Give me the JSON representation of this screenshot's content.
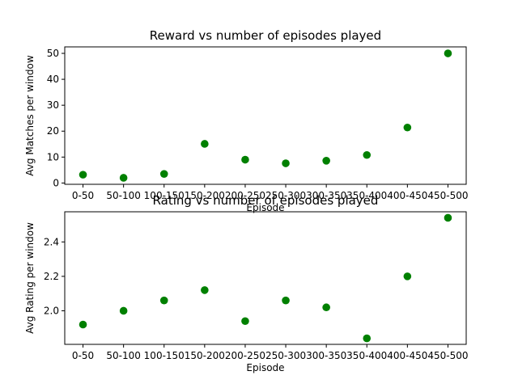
{
  "chart_data": [
    {
      "type": "scatter",
      "title": "Reward vs number of episodes played",
      "xlabel": "Episode",
      "ylabel": "Avg Matches per window",
      "categories": [
        "0-50",
        "50-100",
        "100-150",
        "150-200",
        "200-250",
        "250-300",
        "300-350",
        "350-400",
        "400-450",
        "450-500"
      ],
      "values": [
        3.2,
        2.0,
        3.5,
        15.1,
        9.0,
        7.6,
        8.6,
        10.8,
        21.4,
        50.0
      ],
      "ylim": [
        -0.5,
        52.5
      ],
      "yticks": [
        0,
        10,
        20,
        30,
        40,
        50
      ],
      "grid": false,
      "marker_color": "#008000"
    },
    {
      "type": "scatter",
      "title": "Rating vs number of episodes played",
      "xlabel": "Episode",
      "ylabel": "Avg Rating per window",
      "categories": [
        "0-50",
        "50-100",
        "100-150",
        "150-200",
        "200-250",
        "250-300",
        "300-350",
        "350-400",
        "400-450",
        "450-500"
      ],
      "values": [
        1.92,
        2.0,
        2.06,
        2.12,
        1.94,
        2.06,
        2.02,
        1.84,
        2.2,
        2.54
      ],
      "ylim": [
        1.805,
        2.575
      ],
      "yticks": [
        "2.0",
        "2.2",
        "2.4"
      ],
      "grid": false,
      "marker_color": "#008000"
    }
  ]
}
